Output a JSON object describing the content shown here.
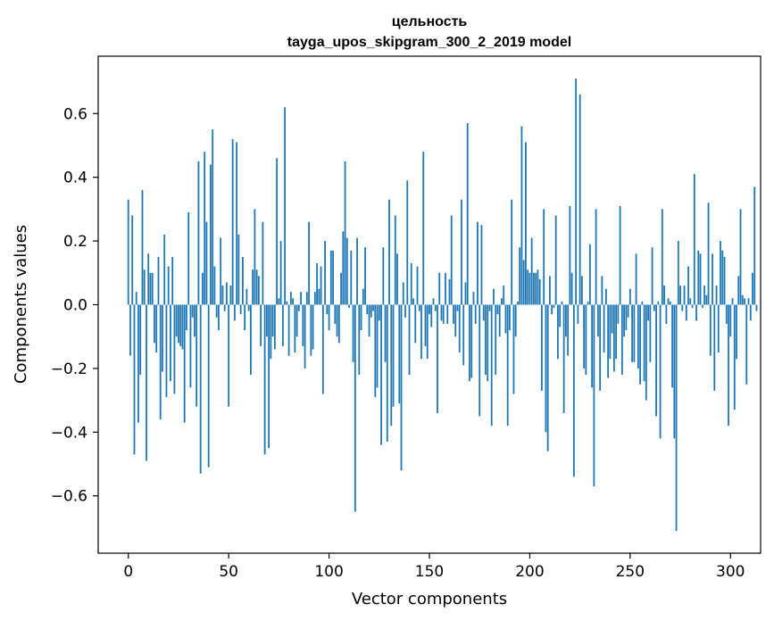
{
  "chart_data": {
    "type": "bar",
    "title_line1": "цельность",
    "title_line2": "tayga_upos_skipgram_300_2_2019 model",
    "xlabel": "Vector components",
    "ylabel": "Components values",
    "xlim": [
      -15,
      315
    ],
    "ylim": [
      -0.78,
      0.78
    ],
    "xticks": [
      0,
      50,
      100,
      150,
      200,
      250,
      300
    ],
    "xtick_labels": [
      "0",
      "50",
      "100",
      "150",
      "200",
      "250",
      "300"
    ],
    "yticks": [
      -0.6,
      -0.4,
      -0.2,
      0.0,
      0.2,
      0.4,
      0.6
    ],
    "ytick_labels": [
      "−0.6",
      "−0.4",
      "−0.2",
      "0.0",
      "0.2",
      "0.4",
      "0.6"
    ],
    "bar_color": "#1f77b4",
    "values": [
      0.33,
      -0.16,
      0.28,
      -0.47,
      0.04,
      -0.37,
      -0.22,
      0.36,
      0.11,
      -0.49,
      0.16,
      0.1,
      0.1,
      -0.12,
      -0.15,
      0.15,
      -0.36,
      -0.21,
      0.22,
      -0.29,
      0.12,
      -0.24,
      0.15,
      -0.28,
      -0.1,
      -0.12,
      -0.13,
      -0.14,
      -0.37,
      -0.08,
      0.29,
      -0.26,
      -0.04,
      -0.1,
      -0.32,
      0.45,
      -0.53,
      0.1,
      0.48,
      0.26,
      -0.51,
      0.44,
      0.55,
      0.12,
      -0.04,
      -0.08,
      0.21,
      0.06,
      -0.02,
      0.07,
      -0.32,
      0.06,
      0.52,
      -0.05,
      0.51,
      0.22,
      -0.03,
      0.15,
      -0.08,
      0.05,
      -0.02,
      -0.22,
      0.11,
      0.3,
      0.11,
      0.09,
      -0.13,
      0.26,
      -0.47,
      -0.1,
      -0.45,
      -0.17,
      -0.1,
      -0.14,
      0.46,
      0.02,
      0.2,
      -0.13,
      0.62,
      0.01,
      -0.16,
      0.04,
      0.02,
      -0.15,
      -0.1,
      -0.02,
      0.04,
      -0.13,
      -0.2,
      0.04,
      0.26,
      -0.16,
      -0.14,
      0.04,
      0.13,
      0.05,
      0.12,
      -0.28,
      0.2,
      -0.03,
      -0.08,
      0.17,
      0.17,
      -0.06,
      -0.1,
      -0.12,
      0.1,
      0.23,
      0.45,
      0.21,
      -0.01,
      0.17,
      -0.18,
      -0.65,
      0.21,
      -0.22,
      -0.08,
      0.05,
      0.18,
      -0.03,
      -0.1,
      -0.04,
      -0.02,
      -0.29,
      -0.26,
      -0.05,
      -0.44,
      0.18,
      -0.18,
      -0.43,
      0.33,
      -0.38,
      -0.32,
      0.28,
      0.16,
      -0.31,
      -0.52,
      0.07,
      -0.04,
      0.39,
      -0.22,
      0.13,
      0.02,
      -0.12,
      0.12,
      -0.02,
      -0.17,
      0.48,
      -0.13,
      -0.17,
      -0.03,
      -0.07,
      0.02,
      -0.02,
      -0.34,
      0.1,
      -0.05,
      -0.06,
      0.1,
      -0.06,
      0.08,
      0.28,
      -0.06,
      -0.1,
      -0.02,
      -0.15,
      0.33,
      -0.19,
      0.07,
      0.57,
      -0.24,
      -0.23,
      0.04,
      -0.06,
      0.26,
      -0.35,
      0.25,
      -0.05,
      -0.22,
      -0.24,
      -0.02,
      -0.38,
      0.05,
      -0.22,
      -0.03,
      -0.1,
      0.02,
      0.06,
      -0.09,
      -0.38,
      -0.08,
      0.33,
      -0.28,
      -0.1,
      0.01,
      0.18,
      0.56,
      0.14,
      0.51,
      0.11,
      0.1,
      0.21,
      0.1,
      0.1,
      0.11,
      0.08,
      -0.27,
      0.3,
      -0.4,
      -0.46,
      0.09,
      -0.03,
      -0.01,
      0.28,
      -0.17,
      -0.07,
      0.01,
      -0.34,
      -0.1,
      -0.16,
      0.31,
      0.1,
      -0.54,
      0.71,
      -0.06,
      0.66,
      0.09,
      -0.2,
      -0.22,
      0.01,
      0.19,
      -0.26,
      -0.57,
      0.3,
      -0.1,
      -0.27,
      0.09,
      -0.15,
      0.05,
      -0.23,
      -0.17,
      -0.09,
      -0.21,
      -0.17,
      -0.06,
      0.31,
      -0.22,
      -0.1,
      -0.08,
      -0.04,
      0.05,
      -0.18,
      -0.18,
      0.16,
      -0.2,
      -0.25,
      0.01,
      -0.24,
      -0.3,
      -0.05,
      -0.18,
      0.18,
      -0.02,
      -0.35,
      0.01,
      -0.42,
      0.3,
      0.06,
      -0.06,
      0.02,
      0.01,
      -0.26,
      -0.42,
      -0.71,
      0.2,
      0.06,
      -0.02,
      0.06,
      -0.05,
      0.12,
      0.02,
      -0.01,
      0.41,
      -0.05,
      0.17,
      0.16,
      -0.01,
      0.06,
      0.03,
      0.32,
      -0.16,
      0.16,
      -0.27,
      0.06,
      -0.15,
      0.2,
      0.17,
      0.15,
      -0.06,
      -0.38,
      -0.1,
      0.02,
      -0.33,
      -0.17,
      0.09,
      0.3,
      0.03,
      0.02,
      -0.25,
      0.02,
      -0.05,
      0.1,
      0.37,
      -0.02
    ]
  }
}
